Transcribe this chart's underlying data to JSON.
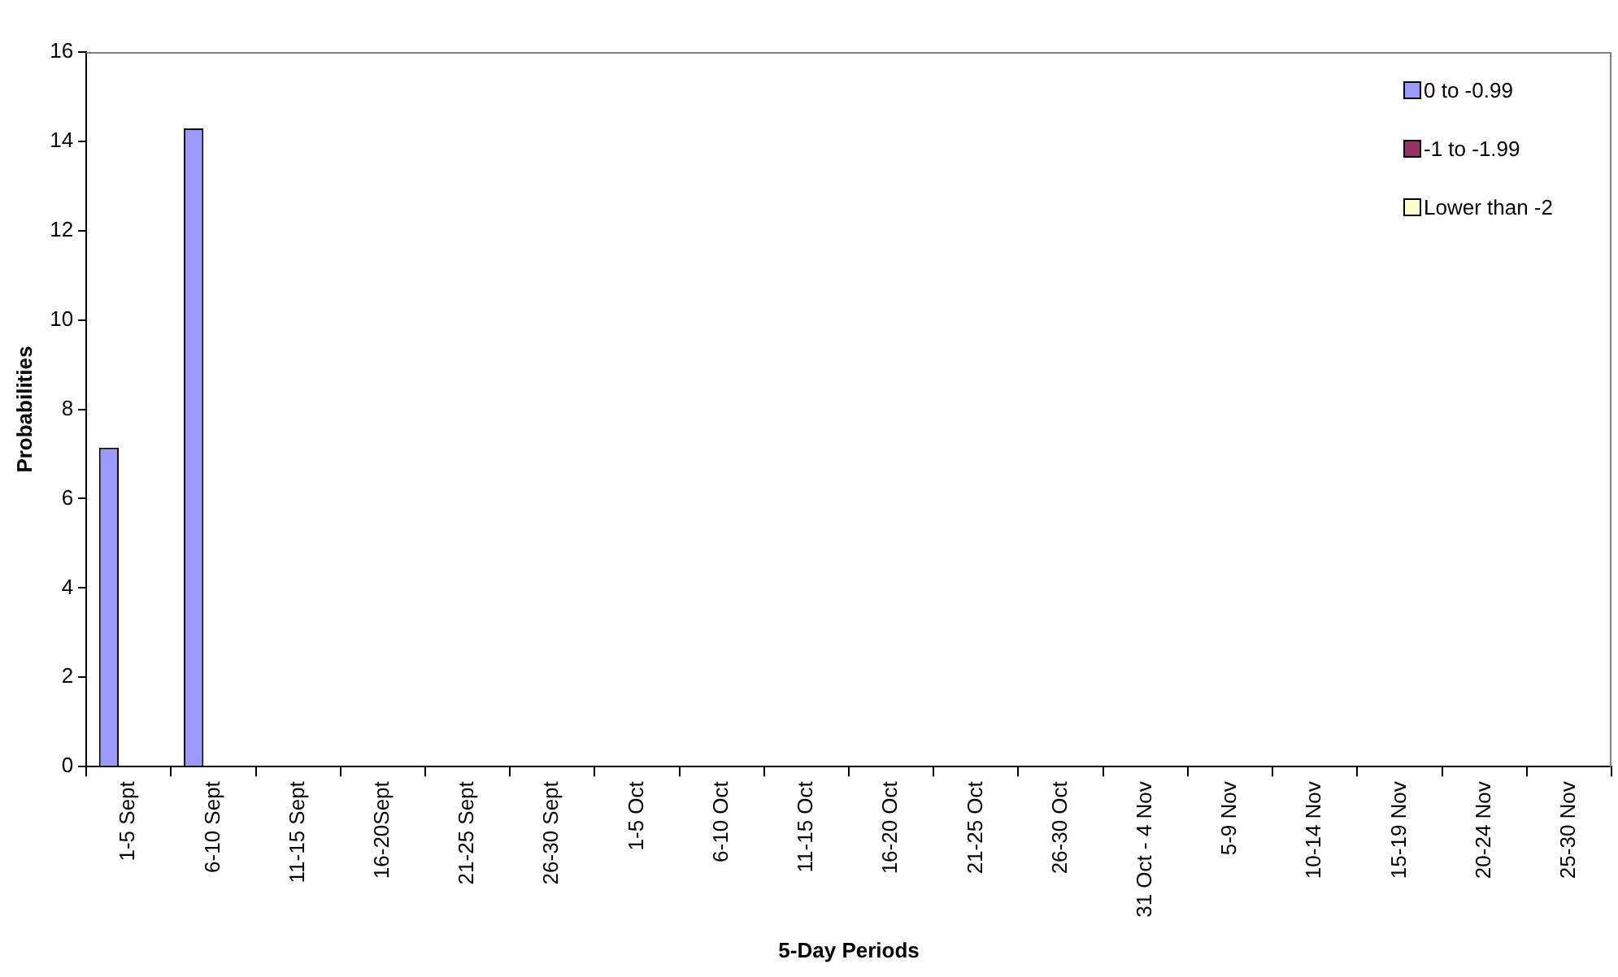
{
  "chart_data": {
    "type": "bar",
    "xlabel": "5-Day Periods",
    "ylabel": "Probabilities",
    "categories": [
      "1-5 Sept",
      "6-10 Sept",
      "11-15 Sept",
      "16-20Sept",
      "21-25 Sept",
      "26-30 Sept",
      "1-5 Oct",
      "6-10 Oct",
      "11-15 Oct",
      "16-20 Oct",
      "21-25 Oct",
      "26-30 Oct",
      "31 Oct - 4 Nov",
      "5-9 Nov",
      "10-14 Nov",
      "15-19 Nov",
      "20-24 Nov",
      "25-30 Nov"
    ],
    "series": [
      {
        "name": "0 to -0.99",
        "color": "#9999ff",
        "values": [
          7.14,
          14.29,
          0,
          0,
          0,
          0,
          0,
          0,
          0,
          0,
          0,
          0,
          0,
          0,
          0,
          0,
          0,
          0
        ]
      },
      {
        "name": "-1 to -1.99",
        "color": "#993366",
        "values": [
          0,
          0,
          0,
          0,
          0,
          0,
          0,
          0,
          0,
          0,
          0,
          0,
          0,
          0,
          0,
          0,
          0,
          0
        ]
      },
      {
        "name": "Lower than -2",
        "color": "#ffffcc",
        "values": [
          0,
          0,
          0,
          0,
          0,
          0,
          0,
          0,
          0,
          0,
          0,
          0,
          0,
          0,
          0,
          0,
          0,
          0
        ]
      }
    ],
    "ylim": [
      0,
      16
    ],
    "yticks": [
      0,
      2,
      4,
      6,
      8,
      10,
      12,
      14,
      16
    ],
    "grid": false,
    "legend": "top right"
  }
}
